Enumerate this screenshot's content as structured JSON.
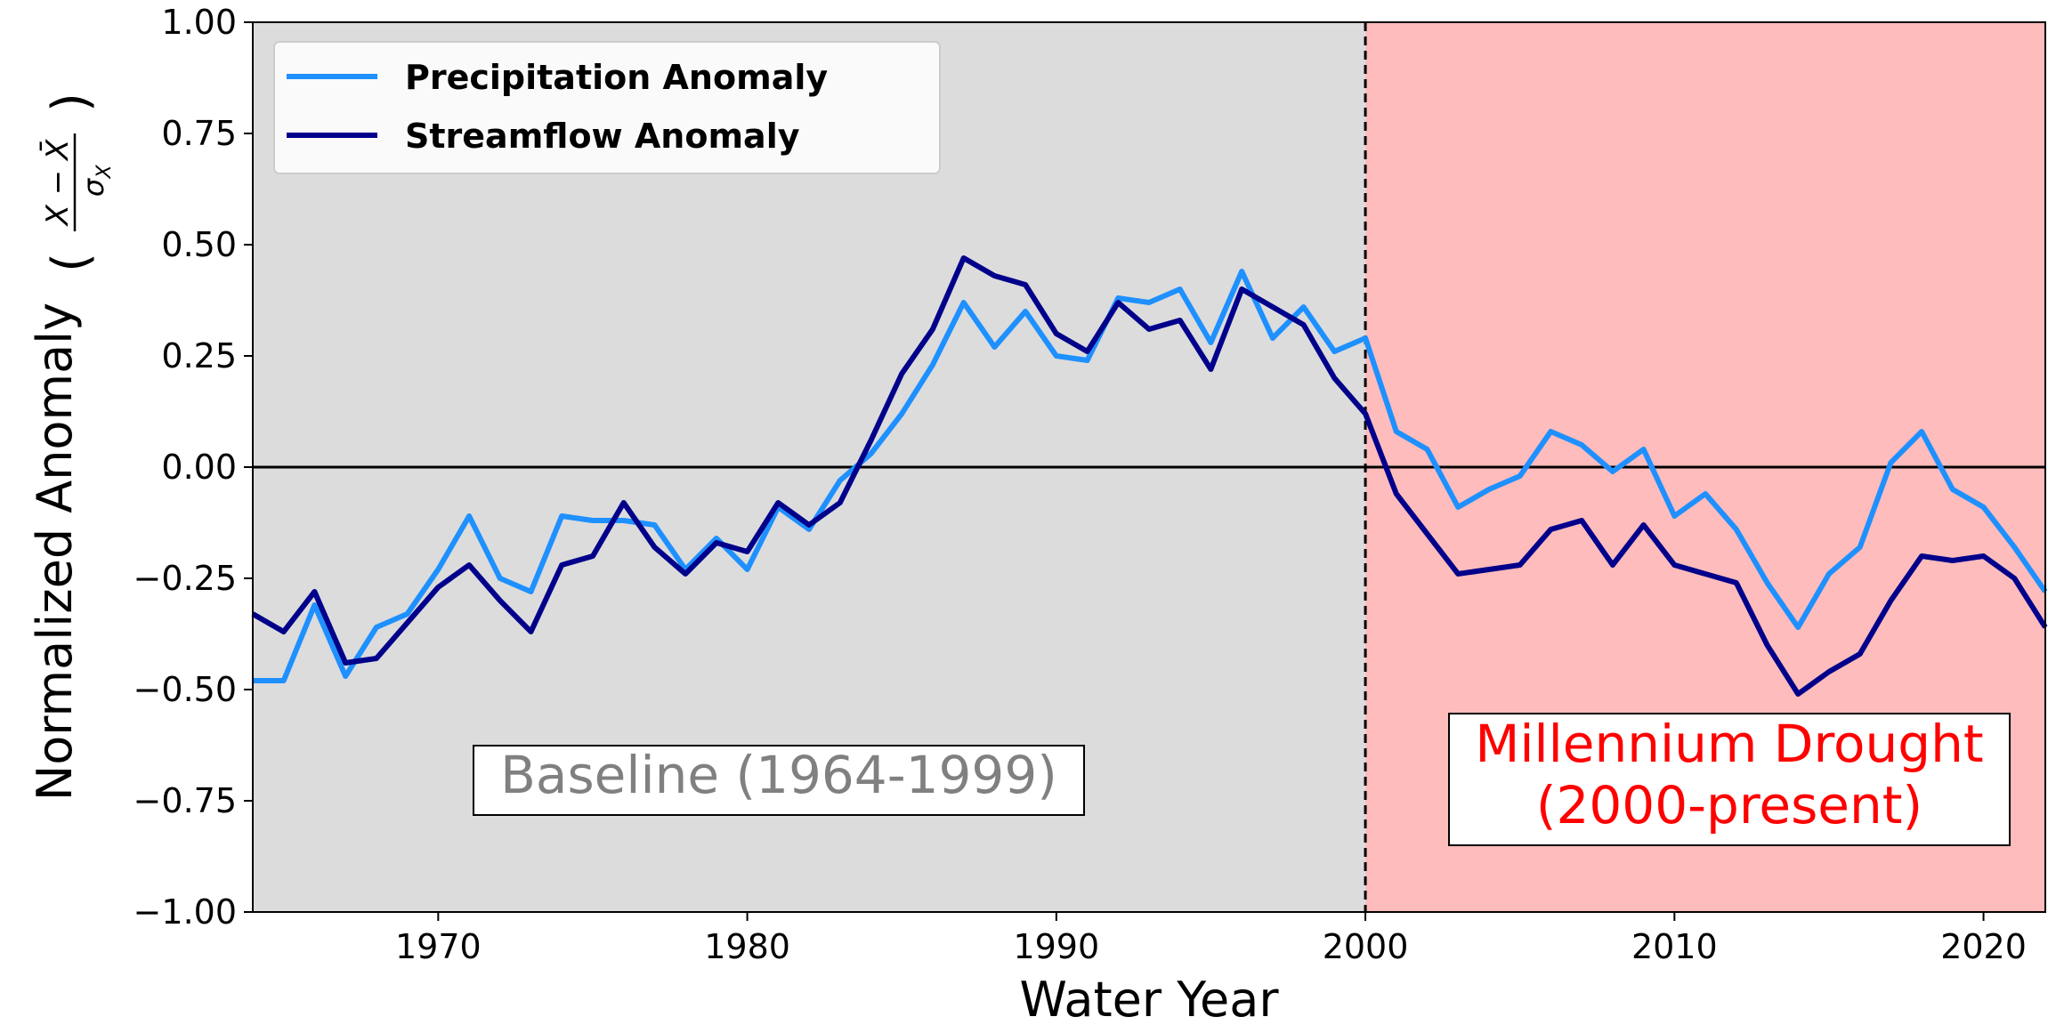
{
  "chart_data": {
    "type": "line",
    "title": "",
    "xlabel": "Water Year",
    "ylabel": "Normalized Anomaly",
    "xlim": [
      1964,
      2022
    ],
    "ylim": [
      -1.0,
      1.0
    ],
    "x_ticks": [
      1970,
      1980,
      1990,
      2000,
      2010,
      2020
    ],
    "x_tick_labels": [
      "1970",
      "1980",
      "1990",
      "2000",
      "2010",
      "2020"
    ],
    "y_ticks": [
      1.0,
      0.75,
      0.5,
      0.25,
      0.0,
      -0.25,
      -0.5,
      -0.75,
      -1.0
    ],
    "y_tick_labels": [
      "1.00",
      "0.75",
      "0.50",
      "0.25",
      "0.00",
      "−0.25",
      "−0.50",
      "−0.75",
      "−1.00"
    ],
    "grid": false,
    "legend_position": "top-left",
    "x": [
      1964,
      1965,
      1966,
      1967,
      1968,
      1969,
      1970,
      1971,
      1972,
      1973,
      1974,
      1975,
      1976,
      1977,
      1978,
      1979,
      1980,
      1981,
      1982,
      1983,
      1984,
      1985,
      1986,
      1987,
      1988,
      1989,
      1990,
      1991,
      1992,
      1993,
      1994,
      1995,
      1996,
      1997,
      1998,
      1999,
      2000,
      2001,
      2002,
      2003,
      2004,
      2005,
      2006,
      2007,
      2008,
      2009,
      2010,
      2011,
      2012,
      2013,
      2014,
      2015,
      2016,
      2017,
      2018,
      2019,
      2020,
      2021,
      2022
    ],
    "series": [
      {
        "name": "Precipitation Anomaly",
        "color": "#1e90ff",
        "values": [
          -0.48,
          -0.48,
          -0.31,
          -0.47,
          -0.36,
          -0.33,
          -0.23,
          -0.11,
          -0.25,
          -0.28,
          -0.11,
          -0.12,
          -0.12,
          -0.13,
          -0.23,
          -0.16,
          -0.23,
          -0.09,
          -0.14,
          -0.03,
          0.03,
          0.12,
          0.23,
          0.37,
          0.27,
          0.35,
          0.25,
          0.24,
          0.38,
          0.37,
          0.4,
          0.28,
          0.44,
          0.29,
          0.36,
          0.26,
          0.29,
          0.08,
          0.04,
          -0.09,
          -0.05,
          -0.02,
          0.08,
          0.05,
          -0.01,
          0.04,
          -0.11,
          -0.06,
          -0.14,
          -0.26,
          -0.36,
          -0.24,
          -0.18,
          0.01,
          0.08,
          -0.05,
          -0.09,
          -0.18,
          -0.28
        ]
      },
      {
        "name": "Streamflow Anomaly",
        "color": "#00008b",
        "values": [
          -0.33,
          -0.37,
          -0.28,
          -0.44,
          -0.43,
          -0.35,
          -0.27,
          -0.22,
          -0.3,
          -0.37,
          -0.22,
          -0.2,
          -0.08,
          -0.18,
          -0.24,
          -0.17,
          -0.19,
          -0.08,
          -0.13,
          -0.08,
          0.06,
          0.21,
          0.31,
          0.47,
          0.43,
          0.41,
          0.3,
          0.26,
          0.37,
          0.31,
          0.33,
          0.22,
          0.4,
          0.36,
          0.32,
          0.2,
          0.12,
          -0.06,
          -0.15,
          -0.24,
          -0.23,
          -0.22,
          -0.14,
          -0.12,
          -0.22,
          -0.13,
          -0.22,
          -0.24,
          -0.26,
          -0.4,
          -0.51,
          -0.46,
          -0.42,
          -0.3,
          -0.2,
          -0.21,
          -0.2,
          -0.25,
          -0.36
        ]
      }
    ],
    "regions": [
      {
        "name": "baseline",
        "x_start": 1964,
        "x_end": 2000,
        "color": "#dcdcdc"
      },
      {
        "name": "drought",
        "x_start": 2000,
        "x_end": 2022,
        "color": "#ffbcbc"
      }
    ],
    "reference_lines": [
      {
        "orientation": "horizontal",
        "value": 0.0,
        "style": "solid",
        "color": "#000000"
      },
      {
        "orientation": "vertical",
        "value": 2000,
        "style": "dashed",
        "color": "#000000"
      }
    ],
    "annotations": [
      {
        "name": "baseline-annotation",
        "lines": [
          "Baseline (1964-1999)"
        ],
        "color": "#808080"
      },
      {
        "name": "drought-annotation",
        "lines": [
          "Millennium Drought",
          "(2000-present)"
        ],
        "color": "#ff0000"
      }
    ]
  }
}
